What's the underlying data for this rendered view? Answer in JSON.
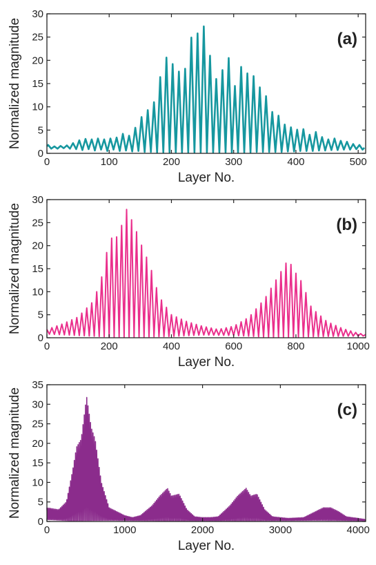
{
  "chart_data": [
    {
      "type": "line",
      "panel_label": "(a)",
      "xlabel": "Layer No.",
      "ylabel": "Normalized magnitude",
      "xlim": [
        0,
        512
      ],
      "ylim": [
        0,
        30
      ],
      "xticks": [
        0,
        100,
        200,
        300,
        400,
        500
      ],
      "yticks": [
        0,
        5,
        10,
        15,
        20,
        25,
        30
      ],
      "grid": false,
      "color": "#16979f",
      "series": [
        {
          "peaks": [
            [
              2,
              1.8
            ],
            [
              12,
              1.5
            ],
            [
              22,
              1.6
            ],
            [
              32,
              1.7
            ],
            [
              42,
              2.2
            ],
            [
              52,
              2.8
            ],
            [
              62,
              3.1
            ],
            [
              72,
              3.0
            ],
            [
              82,
              3.2
            ],
            [
              92,
              3.0
            ],
            [
              102,
              3.2
            ],
            [
              112,
              3.4
            ],
            [
              122,
              4.2
            ],
            [
              132,
              3.8
            ],
            [
              142,
              5.5
            ],
            [
              152,
              7.8
            ],
            [
              162,
              9.3
            ],
            [
              172,
              11.0
            ],
            [
              182,
              16.4
            ],
            [
              192,
              20.6
            ],
            [
              202,
              19.2
            ],
            [
              212,
              17.6
            ],
            [
              222,
              18.2
            ],
            [
              232,
              24.9
            ],
            [
              242,
              25.8
            ],
            [
              252,
              27.3
            ],
            [
              262,
              21.0
            ],
            [
              272,
              16.0
            ],
            [
              282,
              17.9
            ],
            [
              292,
              20.5
            ],
            [
              302,
              14.5
            ],
            [
              312,
              18.6
            ],
            [
              322,
              17.2
            ],
            [
              332,
              16.6
            ],
            [
              342,
              14.2
            ],
            [
              352,
              12.3
            ],
            [
              362,
              8.9
            ],
            [
              372,
              8.1
            ],
            [
              382,
              6.2
            ],
            [
              392,
              5.6
            ],
            [
              402,
              5.1
            ],
            [
              412,
              5.2
            ],
            [
              422,
              4.0
            ],
            [
              432,
              4.6
            ],
            [
              442,
              3.5
            ],
            [
              452,
              3.0
            ],
            [
              462,
              3.2
            ],
            [
              472,
              2.7
            ],
            [
              482,
              2.5
            ],
            [
              492,
              2.0
            ],
            [
              502,
              1.8
            ],
            [
              510,
              1.2
            ]
          ],
          "valleys": [
            [
              0,
              1.5
            ],
            [
              7,
              1.0
            ],
            [
              17,
              1.0
            ],
            [
              27,
              1.1
            ],
            [
              37,
              1.0
            ],
            [
              47,
              0.9
            ],
            [
              57,
              0.7
            ],
            [
              67,
              0.9
            ],
            [
              77,
              0.6
            ],
            [
              87,
              0.8
            ],
            [
              97,
              0.5
            ],
            [
              107,
              0.8
            ],
            [
              117,
              0.5
            ],
            [
              127,
              0.6
            ],
            [
              137,
              0.4
            ],
            [
              147,
              0.5
            ],
            [
              157,
              0.3
            ],
            [
              167,
              0.3
            ],
            [
              177,
              0.2
            ],
            [
              187,
              0.2
            ],
            [
              197,
              0.2
            ],
            [
              207,
              0.2
            ],
            [
              217,
              0.2
            ],
            [
              227,
              0.2
            ],
            [
              237,
              0.2
            ],
            [
              247,
              0.2
            ],
            [
              257,
              0.2
            ],
            [
              267,
              0.2
            ],
            [
              277,
              0.2
            ],
            [
              287,
              0.2
            ],
            [
              297,
              0.2
            ],
            [
              307,
              0.2
            ],
            [
              317,
              0.2
            ],
            [
              327,
              0.2
            ],
            [
              337,
              0.3
            ],
            [
              347,
              0.3
            ],
            [
              357,
              0.3
            ],
            [
              367,
              0.3
            ],
            [
              377,
              0.3
            ],
            [
              387,
              0.4
            ],
            [
              397,
              0.4
            ],
            [
              407,
              0.5
            ],
            [
              417,
              0.5
            ],
            [
              427,
              0.5
            ],
            [
              437,
              0.6
            ],
            [
              447,
              0.6
            ],
            [
              457,
              0.7
            ],
            [
              467,
              0.7
            ],
            [
              477,
              0.8
            ],
            [
              487,
              0.8
            ],
            [
              497,
              0.9
            ],
            [
              507,
              0.8
            ]
          ]
        }
      ]
    },
    {
      "type": "line",
      "panel_label": "(b)",
      "xlabel": "Layer No.",
      "ylabel": "Normalized magnitude",
      "xlim": [
        0,
        1024
      ],
      "ylim": [
        0,
        30
      ],
      "xticks": [
        0,
        200,
        400,
        600,
        800,
        1000
      ],
      "yticks": [
        0,
        5,
        10,
        15,
        20,
        25,
        30
      ],
      "grid": false,
      "color": "#ea2f8c",
      "series": [
        {
          "envelope": [
            [
              0,
              1.8
            ],
            [
              50,
              3.0
            ],
            [
              100,
              4.5
            ],
            [
              150,
              8.0
            ],
            [
              180,
              14.0
            ],
            [
              200,
              21.5
            ],
            [
              230,
              22.0
            ],
            [
              255,
              28.0
            ],
            [
              280,
              24.5
            ],
            [
              310,
              19.0
            ],
            [
              330,
              16.0
            ],
            [
              360,
              9.0
            ],
            [
              400,
              5.0
            ],
            [
              450,
              3.5
            ],
            [
              500,
              2.5
            ],
            [
              550,
              1.8
            ],
            [
              600,
              2.5
            ],
            [
              650,
              4.5
            ],
            [
              700,
              8.5
            ],
            [
              740,
              13.0
            ],
            [
              775,
              17.0
            ],
            [
              800,
              14.0
            ],
            [
              820,
              12.0
            ],
            [
              850,
              6.5
            ],
            [
              900,
              3.5
            ],
            [
              950,
              2.0
            ],
            [
              1000,
              1.0
            ],
            [
              1024,
              0.7
            ]
          ],
          "valley_envelope": [
            [
              0,
              0.8
            ],
            [
              100,
              0.5
            ],
            [
              200,
              0.2
            ],
            [
              300,
              0.2
            ],
            [
              400,
              0.3
            ],
            [
              500,
              0.6
            ],
            [
              600,
              0.5
            ],
            [
              700,
              0.2
            ],
            [
              800,
              0.2
            ],
            [
              900,
              0.3
            ],
            [
              1024,
              0.4
            ]
          ],
          "oscillation_period": 16
        }
      ]
    },
    {
      "type": "line",
      "panel_label": "(c)",
      "xlabel": "Layer No.",
      "ylabel": "Normalized magnitude",
      "xlim": [
        0,
        4096
      ],
      "ylim": [
        0,
        35
      ],
      "xticks": [
        0,
        1000,
        2000,
        3000,
        4000
      ],
      "yticks": [
        0,
        5,
        10,
        15,
        20,
        25,
        30,
        35
      ],
      "grid": false,
      "color": "#8b2c8c",
      "series": [
        {
          "envelope": [
            [
              0,
              3.5
            ],
            [
              150,
              3.0
            ],
            [
              250,
              5.0
            ],
            [
              330,
              13.0
            ],
            [
              380,
              19.0
            ],
            [
              440,
              21.0
            ],
            [
              510,
              32.0
            ],
            [
              570,
              24.0
            ],
            [
              620,
              21.0
            ],
            [
              700,
              10.0
            ],
            [
              800,
              3.5
            ],
            [
              900,
              2.5
            ],
            [
              1000,
              1.5
            ],
            [
              1100,
              1.0
            ],
            [
              1200,
              1.5
            ],
            [
              1350,
              4.0
            ],
            [
              1450,
              6.5
            ],
            [
              1550,
              8.5
            ],
            [
              1600,
              6.5
            ],
            [
              1700,
              7.0
            ],
            [
              1800,
              3.0
            ],
            [
              1900,
              1.2
            ],
            [
              2000,
              1.0
            ],
            [
              2100,
              1.0
            ],
            [
              2200,
              1.2
            ],
            [
              2350,
              4.0
            ],
            [
              2450,
              6.5
            ],
            [
              2560,
              8.5
            ],
            [
              2620,
              6.5
            ],
            [
              2700,
              7.0
            ],
            [
              2800,
              3.0
            ],
            [
              2900,
              1.2
            ],
            [
              3100,
              0.8
            ],
            [
              3300,
              1.0
            ],
            [
              3450,
              2.5
            ],
            [
              3550,
              3.5
            ],
            [
              3650,
              3.5
            ],
            [
              3750,
              2.5
            ],
            [
              3850,
              1.2
            ],
            [
              4000,
              0.8
            ],
            [
              4096,
              0.5
            ]
          ],
          "valley_envelope": [
            [
              0,
              0.5
            ],
            [
              300,
              0.2
            ],
            [
              800,
              0.3
            ],
            [
              1500,
              0.2
            ],
            [
              2500,
              0.2
            ],
            [
              3500,
              0.3
            ],
            [
              4096,
              0.2
            ]
          ],
          "oscillation_period": 16
        }
      ]
    }
  ]
}
